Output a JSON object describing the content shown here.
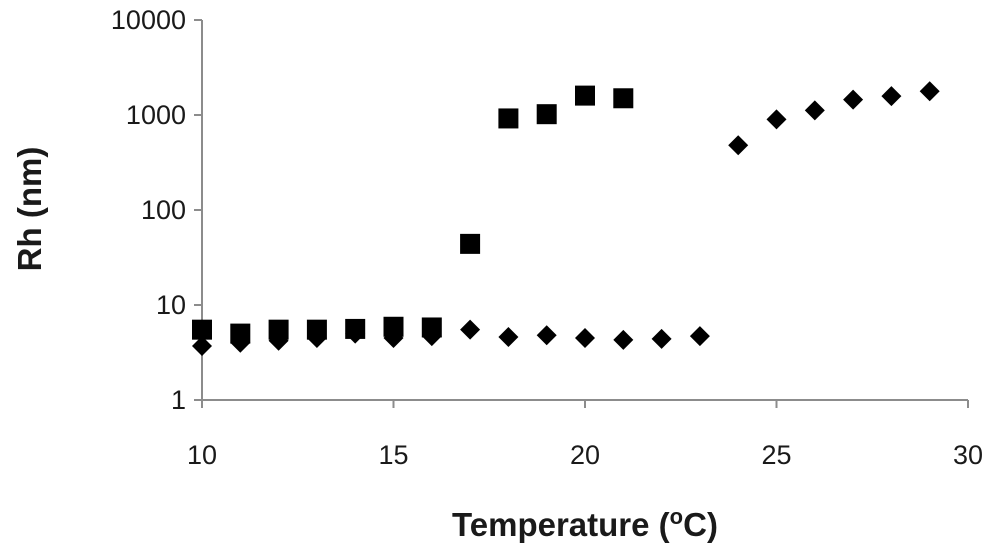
{
  "chart_data": {
    "type": "scatter",
    "xlabel": "Temperature (oC)",
    "xlabel_base": "Temperature (",
    "xlabel_super": "o",
    "xlabel_tail": "C)",
    "ylabel": "Rh (nm)",
    "xlim": [
      10,
      30
    ],
    "ylim": [
      1,
      10000
    ],
    "yscale": "log",
    "x_ticks": [
      "10",
      "15",
      "20",
      "25",
      "30"
    ],
    "y_ticks": [
      "1",
      "10",
      "100",
      "1000",
      "10000"
    ],
    "grid": false,
    "legend": "none",
    "series": [
      {
        "marker": "square",
        "color": "#000000",
        "x": [
          10,
          11,
          12,
          13,
          14,
          15,
          16,
          17,
          18,
          19,
          20,
          21
        ],
        "y": [
          5.5,
          5.0,
          5.5,
          5.5,
          5.6,
          5.9,
          5.8,
          44,
          920,
          1020,
          1600,
          1500
        ]
      },
      {
        "marker": "diamond",
        "color": "#000000",
        "x": [
          10,
          11,
          12,
          13,
          14,
          15,
          16,
          17,
          18,
          19,
          20,
          21,
          22,
          23,
          24,
          25,
          26,
          27,
          28,
          29
        ],
        "y": [
          3.7,
          4.0,
          4.2,
          4.5,
          5.0,
          4.5,
          4.7,
          5.5,
          4.6,
          4.8,
          4.5,
          4.3,
          4.4,
          4.7,
          480,
          900,
          1120,
          1450,
          1580,
          1780
        ]
      }
    ]
  }
}
